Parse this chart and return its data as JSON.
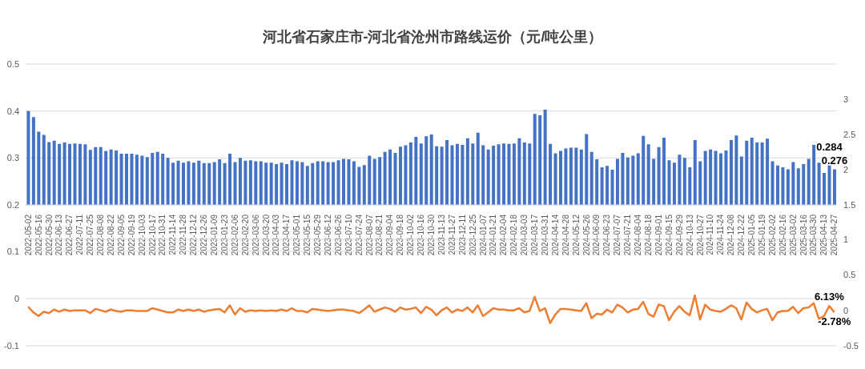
{
  "chart_data": [
    {
      "type": "bar",
      "title": "河北省石家庄市-河北省沧州市路线运价（元/吨公里）",
      "categories": [
        "2022-05-02",
        null,
        "2022-05-16",
        null,
        "2022-05-30",
        null,
        "2022-06-13",
        null,
        "2022-06-27",
        null,
        "2022-07-11",
        null,
        "2022-07-25",
        null,
        "2022-08-08",
        null,
        "2022-08-22",
        null,
        "2022-09-05",
        null,
        "2022-09-19",
        null,
        "2022-10-03",
        null,
        "2022-10-17",
        null,
        "2022-10-31",
        null,
        "2022-11-14",
        null,
        "2022-11-28",
        null,
        "2022-12-12",
        null,
        "2022-12-26",
        null,
        "2023-01-09",
        null,
        "2023-01-23",
        null,
        "2023-02-06",
        null,
        "2023-02-20",
        null,
        "2023-03-06",
        null,
        "2023-03-20",
        null,
        "2023-04-03",
        null,
        "2023-04-17",
        null,
        "2023-05-01",
        null,
        "2023-05-15",
        null,
        "2023-05-29",
        null,
        "2023-06-12",
        null,
        "2023-06-26",
        null,
        "2023-07-10",
        null,
        "2023-07-24",
        null,
        "2023-08-07",
        null,
        "2023-08-21",
        null,
        "2023-09-04",
        null,
        "2023-09-18",
        null,
        "2023-10-02",
        null,
        "2023-10-16",
        null,
        "2023-10-30",
        null,
        "2023-11-13",
        null,
        "2023-11-27",
        null,
        "2023-12-11",
        null,
        "2023-12-25",
        null,
        "2024-01-07",
        null,
        "2024-01-21",
        null,
        "2024-02-04",
        null,
        "2024-02-18",
        null,
        "2024-03-03",
        null,
        "2024-03-17",
        null,
        "2024-03-31",
        null,
        "2024-04-14",
        null,
        "2024-04-28",
        null,
        "2024-05-12",
        null,
        "2024-05-26",
        null,
        "2024-06-09",
        null,
        "2024-06-23",
        null,
        "2024-07-07",
        null,
        "2024-07-21",
        null,
        "2024-08-04",
        null,
        "2024-08-18",
        null,
        "2024-09-01",
        null,
        "2024-09-15",
        null,
        "2024-09-29",
        null,
        "2024-10-13",
        null,
        "2024-10-27",
        null,
        "2024-11-10",
        null,
        "2024-11-24",
        null,
        "2024-12-08",
        null,
        "2024-12-22",
        null,
        "2025-01-05",
        null,
        "2025-01-19",
        null,
        "2025-02-02",
        null,
        "2025-02-16",
        null,
        "2025-03-02",
        null,
        "2025-03-16",
        null,
        "2025-03-30",
        null,
        "2025-04-13",
        null,
        "2025-04-27"
      ],
      "series": [
        {
          "color": "#4472c4",
          "values": [
            0.4,
            0.387,
            0.356,
            0.349,
            0.334,
            0.337,
            0.33,
            0.333,
            0.33,
            0.331,
            0.33,
            0.329,
            0.317,
            0.323,
            0.323,
            0.315,
            0.318,
            0.316,
            0.309,
            0.309,
            0.309,
            0.307,
            0.305,
            0.302,
            0.311,
            0.313,
            0.309,
            0.3,
            0.29,
            0.294,
            0.29,
            0.293,
            0.29,
            0.294,
            0.289,
            0.289,
            0.291,
            0.297,
            0.289,
            0.309,
            0.291,
            0.3,
            0.294,
            0.295,
            0.293,
            0.293,
            0.29,
            0.29,
            0.287,
            0.29,
            0.287,
            0.295,
            0.293,
            0.291,
            0.283,
            0.289,
            0.293,
            0.293,
            0.291,
            0.291,
            0.295,
            0.298,
            0.297,
            0.293,
            0.281,
            0.285,
            0.305,
            0.298,
            0.302,
            0.313,
            0.318,
            0.311,
            0.324,
            0.327,
            0.333,
            0.345,
            0.331,
            0.346,
            0.35,
            0.325,
            0.324,
            0.338,
            0.327,
            0.33,
            0.328,
            0.342,
            0.331,
            0.354,
            0.327,
            0.318,
            0.326,
            0.329,
            0.331,
            0.33,
            0.331,
            0.342,
            0.333,
            0.331,
            0.394,
            0.391,
            0.403,
            0.33,
            0.31,
            0.315,
            0.32,
            0.322,
            0.322,
            0.318,
            0.351,
            0.313,
            0.297,
            0.28,
            0.283,
            0.275,
            0.298,
            0.311,
            0.301,
            0.305,
            0.31,
            0.347,
            0.329,
            0.298,
            0.323,
            0.343,
            0.295,
            0.29,
            0.307,
            0.3,
            0.28,
            0.338,
            0.293,
            0.315,
            0.318,
            0.315,
            0.31,
            0.316,
            0.338,
            0.348,
            0.303,
            0.337,
            0.343,
            0.333,
            0.333,
            0.341,
            0.293,
            0.284,
            0.28,
            0.276,
            0.291,
            0.278,
            0.287,
            0.298,
            0.328,
            0.29,
            0.268,
            0.284,
            0.276
          ],
          "value_labels": [
            null,
            null,
            null,
            null,
            null,
            null,
            null,
            null,
            null,
            null,
            null,
            null,
            null,
            null,
            null,
            null,
            null,
            null,
            null,
            null,
            null,
            null,
            null,
            null,
            null,
            null,
            null,
            null,
            null,
            null,
            null,
            null,
            null,
            null,
            null,
            null,
            null,
            null,
            null,
            null,
            null,
            null,
            null,
            null,
            null,
            null,
            null,
            null,
            null,
            null,
            null,
            null,
            null,
            null,
            null,
            null,
            null,
            null,
            null,
            null,
            null,
            null,
            null,
            null,
            null,
            null,
            null,
            null,
            null,
            null,
            null,
            null,
            null,
            null,
            null,
            null,
            null,
            null,
            null,
            null,
            null,
            null,
            null,
            null,
            null,
            null,
            null,
            null,
            null,
            null,
            null,
            null,
            null,
            null,
            null,
            null,
            null,
            null,
            null,
            null,
            null,
            null,
            null,
            null,
            null,
            null,
            null,
            null,
            null,
            null,
            null,
            null,
            null,
            null,
            null,
            null,
            null,
            null,
            null,
            null,
            null,
            null,
            null,
            null,
            null,
            null,
            null,
            null,
            null,
            null,
            null,
            null,
            null,
            null,
            null,
            null,
            null,
            null,
            null,
            null,
            null,
            null,
            null,
            null,
            null,
            null,
            null,
            null,
            null,
            null,
            null,
            null,
            null,
            null,
            null,
            "0.284",
            "0.276"
          ]
        }
      ],
      "ylim": [
        0.2,
        0.5
      ],
      "yticks": [
        0.2,
        0.3,
        0.4,
        0.5
      ],
      "y2lim": [
        1.5,
        3.5
      ],
      "y2ticks": [
        1.5,
        2,
        2.5,
        3
      ],
      "grid": "y"
    },
    {
      "type": "line",
      "categories": [
        null,
        null,
        null,
        null,
        null,
        null,
        null,
        null,
        null,
        null,
        null,
        null,
        null,
        null,
        null,
        null,
        null,
        null,
        null,
        null,
        null,
        null,
        null,
        null,
        null,
        null,
        null,
        null,
        null,
        null,
        null,
        null,
        null,
        null,
        null,
        null,
        null,
        null,
        null,
        null,
        null,
        null,
        null,
        null,
        null,
        null,
        null,
        null,
        null,
        null,
        null,
        null,
        null,
        null,
        null,
        null,
        null,
        null,
        null,
        null,
        null,
        null,
        null,
        null,
        null,
        null,
        null,
        null,
        null,
        null,
        null,
        null,
        null,
        null,
        null,
        null,
        null,
        null,
        null,
        null,
        null,
        null,
        null,
        null,
        null,
        null,
        null,
        null,
        null,
        null,
        null,
        null,
        null,
        null,
        null,
        null,
        null,
        null,
        null,
        null,
        null,
        null,
        null,
        null,
        null,
        null,
        null,
        null,
        null,
        null,
        null,
        null,
        null,
        null,
        null,
        null,
        null,
        null,
        null,
        null,
        null,
        null,
        null,
        null,
        null,
        null,
        null,
        null,
        null,
        null,
        null,
        null,
        null,
        null,
        null,
        null,
        null,
        null,
        null,
        null,
        null,
        null,
        null,
        null,
        null,
        null,
        null,
        null,
        null,
        null,
        null,
        null,
        null,
        null,
        null,
        null,
        null
      ],
      "series": [
        {
          "color": "#ed7d31",
          "axis": "y2",
          "values": [
            0.05,
            -0.03,
            -0.08,
            -0.02,
            -0.04,
            0.01,
            -0.02,
            0.01,
            -0.01,
            0,
            0,
            0,
            -0.04,
            0.02,
            0,
            -0.02,
            0.01,
            -0.01,
            -0.02,
            0,
            0,
            -0.01,
            -0.01,
            -0.01,
            0.03,
            0.01,
            -0.01,
            -0.03,
            -0.03,
            0.01,
            -0.01,
            0.01,
            -0.01,
            0.01,
            -0.02,
            0,
            0.01,
            0.02,
            -0.03,
            0.07,
            -0.06,
            0.03,
            -0.02,
            0,
            -0.01,
            0,
            -0.01,
            0,
            -0.01,
            0.01,
            -0.01,
            0.03,
            -0.01,
            -0.01,
            -0.03,
            0.02,
            0.01,
            0,
            -0.01,
            0,
            0.01,
            0.01,
            0,
            -0.01,
            -0.04,
            0.01,
            0.07,
            -0.02,
            0.01,
            0.04,
            0.02,
            -0.02,
            0.04,
            0.01,
            0.02,
            0.04,
            -0.04,
            0.05,
            0.01,
            -0.07,
            0,
            0.04,
            -0.03,
            0.01,
            -0.01,
            0.04,
            -0.03,
            0.07,
            -0.08,
            -0.03,
            0.03,
            0.01,
            0.01,
            0,
            0,
            0.03,
            -0.03,
            -0.01,
            0.19,
            -0.01,
            0.03,
            -0.18,
            -0.06,
            0.02,
            0.02,
            0.01,
            0,
            -0.01,
            0.1,
            -0.11,
            -0.05,
            -0.06,
            0.01,
            -0.03,
            0.08,
            0.04,
            -0.03,
            0.01,
            0.02,
            0.12,
            -0.05,
            -0.09,
            0.08,
            0.06,
            -0.14,
            -0.02,
            0.06,
            -0.02,
            -0.07,
            0.21,
            -0.13,
            0.08,
            0.01,
            -0.01,
            -0.02,
            0.02,
            0.07,
            0.03,
            -0.13,
            0.11,
            0.02,
            -0.03,
            0,
            0.02,
            -0.14,
            -0.03,
            -0.01,
            -0.01,
            0.05,
            -0.04,
            0.03,
            0.04,
            0.1,
            -0.12,
            -0.08,
            0.0613,
            -0.0278
          ],
          "value_labels": [
            null,
            null,
            null,
            null,
            null,
            null,
            null,
            null,
            null,
            null,
            null,
            null,
            null,
            null,
            null,
            null,
            null,
            null,
            null,
            null,
            null,
            null,
            null,
            null,
            null,
            null,
            null,
            null,
            null,
            null,
            null,
            null,
            null,
            null,
            null,
            null,
            null,
            null,
            null,
            null,
            null,
            null,
            null,
            null,
            null,
            null,
            null,
            null,
            null,
            null,
            null,
            null,
            null,
            null,
            null,
            null,
            null,
            null,
            null,
            null,
            null,
            null,
            null,
            null,
            null,
            null,
            null,
            null,
            null,
            null,
            null,
            null,
            null,
            null,
            null,
            null,
            null,
            null,
            null,
            null,
            null,
            null,
            null,
            null,
            null,
            null,
            null,
            null,
            null,
            null,
            null,
            null,
            null,
            null,
            null,
            null,
            null,
            null,
            null,
            null,
            null,
            null,
            null,
            null,
            null,
            null,
            null,
            null,
            null,
            null,
            null,
            null,
            null,
            null,
            null,
            null,
            null,
            null,
            null,
            null,
            null,
            null,
            null,
            null,
            null,
            null,
            null,
            null,
            null,
            null,
            null,
            null,
            null,
            null,
            null,
            null,
            null,
            null,
            null,
            null,
            null,
            null,
            null,
            null,
            null,
            null,
            null,
            null,
            null,
            null,
            null,
            null,
            null,
            null,
            null,
            "6.13%",
            "-2.78%"
          ]
        }
      ],
      "ylim": [
        -0.1,
        0.125
      ],
      "yticks": [
        -0.1,
        0,
        0.1
      ],
      "y2lim": [
        -0.5,
        1
      ],
      "y2ticks": [
        -0.5,
        0,
        0.5,
        1
      ],
      "grid": "y",
      "tick_labels": "y",
      "marker": "none"
    }
  ]
}
